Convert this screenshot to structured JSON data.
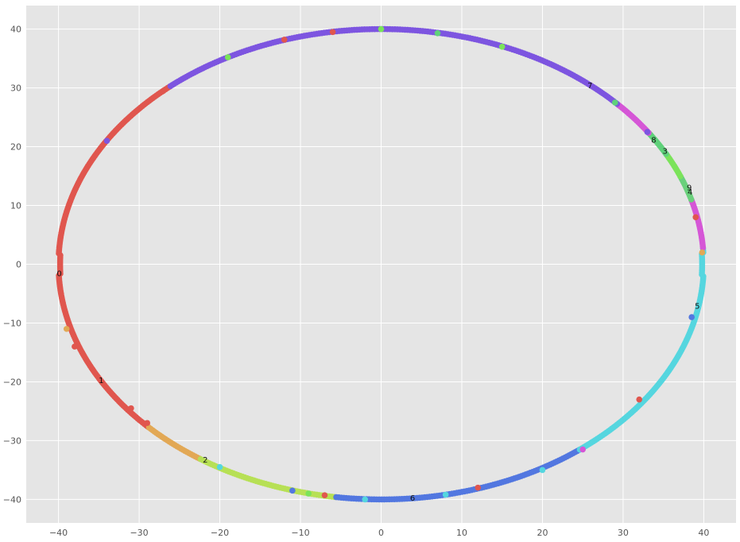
{
  "chart_data": {
    "type": "scatter",
    "title": "",
    "xlabel": "",
    "ylabel": "",
    "xlim": [
      -44,
      44
    ],
    "ylim": [
      -44,
      44
    ],
    "grid": true,
    "background": "#e5e5e5",
    "grid_color": "#ffffff",
    "x_ticks": [
      -40,
      -30,
      -20,
      -10,
      0,
      10,
      20,
      30,
      40
    ],
    "y_ticks": [
      40,
      30,
      20,
      10,
      0,
      -10,
      -20,
      -30,
      -40
    ],
    "x_tick_labels": [
      "−40",
      "−30",
      "−20",
      "−10",
      "0",
      "10",
      "20",
      "30",
      "40"
    ],
    "y_tick_labels": [
      "40",
      "30",
      "20",
      "10",
      "0",
      "−10",
      "−20",
      "−30",
      "−40"
    ],
    "shape": "circle",
    "radius": 40,
    "cluster_colors": {
      "0": "#e0564e",
      "1": "#e2a855",
      "2": "#b7e055",
      "3": "#5fd17a",
      "4": "#6ad07c",
      "5": "#55d6df",
      "6": "#5277e0",
      "7": "#7d55e0",
      "8": "#d556d6",
      "9": "#7be35a"
    },
    "clusters": [
      {
        "id": "0",
        "from_deg": 131,
        "to_deg": 224
      },
      {
        "id": "1",
        "from_deg": 224,
        "to_deg": 236
      },
      {
        "id": "2",
        "from_deg": 236,
        "to_deg": 262
      },
      {
        "id": "6",
        "from_deg": 262,
        "to_deg": 308
      },
      {
        "id": "5",
        "from_deg": 308,
        "to_deg": 364
      },
      {
        "id": "8",
        "from_deg": 4,
        "to_deg": 16
      },
      {
        "id": "4",
        "from_deg": 16,
        "to_deg": 22
      },
      {
        "id": "9",
        "from_deg": 22,
        "to_deg": 28
      },
      {
        "id": "3",
        "from_deg": 28,
        "to_deg": 34
      },
      {
        "id": "8",
        "from_deg": 34,
        "to_deg": 43
      },
      {
        "id": "7",
        "from_deg": 43,
        "to_deg": 131
      }
    ],
    "outliers": [
      {
        "x": 0,
        "y": 40,
        "cluster": "9"
      },
      {
        "x": 7,
        "y": 39.3,
        "cluster": "3"
      },
      {
        "x": -19,
        "y": 35.2,
        "cluster": "9"
      },
      {
        "x": -6,
        "y": 39.5,
        "cluster": "0"
      },
      {
        "x": -12,
        "y": 38.2,
        "cluster": "0"
      },
      {
        "x": -27,
        "y": 29.5,
        "cluster": "0"
      },
      {
        "x": -34,
        "y": 21,
        "cluster": "7"
      },
      {
        "x": -39,
        "y": -11,
        "cluster": "1"
      },
      {
        "x": -38,
        "y": -14,
        "cluster": "0"
      },
      {
        "x": -31,
        "y": -24.5,
        "cluster": "0"
      },
      {
        "x": -29,
        "y": -27,
        "cluster": "0"
      },
      {
        "x": -20,
        "y": -34.5,
        "cluster": "5"
      },
      {
        "x": -11,
        "y": -38.5,
        "cluster": "6"
      },
      {
        "x": -9,
        "y": -39,
        "cluster": "9"
      },
      {
        "x": -7,
        "y": -39.3,
        "cluster": "0"
      },
      {
        "x": -2,
        "y": -40,
        "cluster": "5"
      },
      {
        "x": 8,
        "y": -39.2,
        "cluster": "5"
      },
      {
        "x": 12,
        "y": -38,
        "cluster": "0"
      },
      {
        "x": 20,
        "y": -35,
        "cluster": "5"
      },
      {
        "x": 25,
        "y": -31.5,
        "cluster": "8"
      },
      {
        "x": 32,
        "y": -23,
        "cluster": "0"
      },
      {
        "x": 38.5,
        "y": -9,
        "cluster": "6"
      },
      {
        "x": 39.8,
        "y": 2,
        "cluster": "1"
      },
      {
        "x": 39,
        "y": 8,
        "cluster": "0"
      },
      {
        "x": 29,
        "y": 27.5,
        "cluster": "3"
      },
      {
        "x": 33,
        "y": 22.5,
        "cluster": "7"
      },
      {
        "x": 15,
        "y": 37,
        "cluster": "9"
      }
    ],
    "cluster_labels": [
      {
        "text": "0",
        "x": -39.9,
        "y": -1.5
      },
      {
        "text": "1",
        "x": -34.7,
        "y": -19.7
      },
      {
        "text": "2",
        "x": -21.8,
        "y": -33.2
      },
      {
        "text": "3",
        "x": 35.2,
        "y": 19.3
      },
      {
        "text": "4",
        "x": 38.3,
        "y": 12.4
      },
      {
        "text": "5",
        "x": 39.2,
        "y": -7
      },
      {
        "text": "6",
        "x": 3.9,
        "y": -39.7
      },
      {
        "text": "7",
        "x": 25.9,
        "y": 30.5
      },
      {
        "text": "8",
        "x": 33.8,
        "y": 21.2
      },
      {
        "text": "9",
        "x": 38.2,
        "y": 13.1
      }
    ]
  }
}
